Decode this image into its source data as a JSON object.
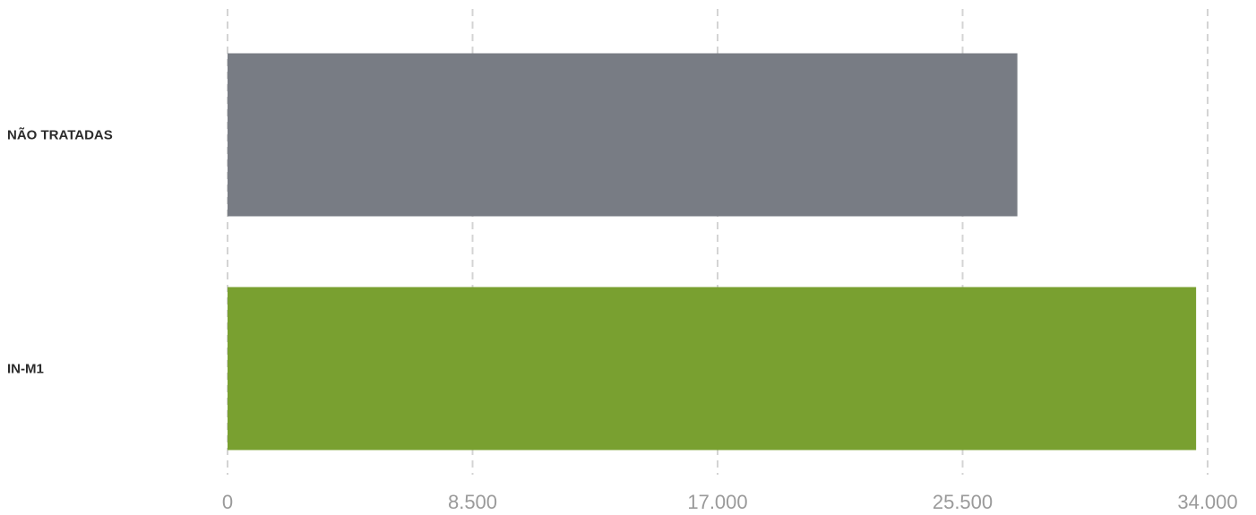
{
  "chart_data": {
    "type": "bar",
    "orientation": "horizontal",
    "categories": [
      "NÃO TRATADAS",
      "IN-M1"
    ],
    "values": [
      27400,
      33600
    ],
    "colors": [
      "#787c84",
      "#79a030"
    ],
    "xlim": [
      0,
      34000
    ],
    "xticks": [
      "0",
      "8.500",
      "17.000",
      "25.500",
      "34.000"
    ],
    "xtick_values": [
      0,
      8500,
      17000,
      25500,
      34000
    ],
    "grid": "vertical-dashed",
    "title": "",
    "xlabel": "",
    "ylabel": ""
  }
}
